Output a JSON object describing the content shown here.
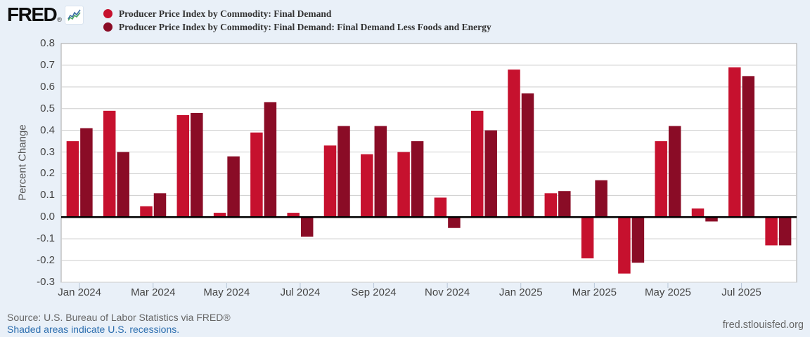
{
  "header": {
    "logo_text": "FRED",
    "logo_icon": "fred-sparkline-icon"
  },
  "chart_data": {
    "type": "bar",
    "title": "",
    "xlabel": "",
    "ylabel": "Percent Change",
    "ylim": [
      -0.3,
      0.8
    ],
    "grid": true,
    "legend_position": "top-left",
    "y_tick_labels": [
      "0.8",
      "0.7",
      "0.6",
      "0.5",
      "0.4",
      "0.3",
      "0.2",
      "0.1",
      "0.0",
      "-0.1",
      "-0.2",
      "-0.3"
    ],
    "x_tick_labels": [
      "Jan 2024",
      "Mar 2024",
      "May 2024",
      "Jul 2024",
      "Sep 2024",
      "Nov 2024",
      "Jan 2025",
      "Mar 2025",
      "May 2025",
      "Jul 2025"
    ],
    "x_tick_month_indices": [
      0,
      2,
      4,
      6,
      8,
      10,
      12,
      14,
      16,
      18
    ],
    "categories": [
      "Jan 2024",
      "Feb 2024",
      "Mar 2024",
      "Apr 2024",
      "May 2024",
      "Jun 2024",
      "Jul 2024",
      "Aug 2024",
      "Sep 2024",
      "Oct 2024",
      "Nov 2024",
      "Dec 2024",
      "Jan 2025",
      "Feb 2025",
      "Mar 2025",
      "Apr 2025",
      "May 2025",
      "Jun 2025",
      "Jul 2025",
      "Aug 2025"
    ],
    "series": [
      {
        "name": "Producer Price Index by Commodity: Final Demand",
        "color": "#c6112e",
        "values": [
          0.35,
          0.49,
          0.05,
          0.47,
          0.02,
          0.39,
          0.02,
          0.33,
          0.29,
          0.3,
          0.09,
          0.49,
          0.68,
          0.11,
          -0.19,
          -0.26,
          0.35,
          0.04,
          0.69,
          -0.13
        ]
      },
      {
        "name": "Producer Price Index by Commodity: Final Demand: Final Demand Less Foods and Energy",
        "color": "#8a0c26",
        "values": [
          0.41,
          0.3,
          0.11,
          0.48,
          0.28,
          0.53,
          -0.09,
          0.42,
          0.42,
          0.35,
          -0.05,
          0.4,
          0.57,
          0.12,
          0.17,
          -0.21,
          0.42,
          -0.02,
          0.65,
          -0.13
        ]
      }
    ]
  },
  "footer": {
    "source": "Source: U.S. Bureau of Labor Statistics via FRED®",
    "recession_note": "Shaded areas indicate U.S. recessions.",
    "site": "fred.stlouisfed.org"
  },
  "colors": {
    "page_background": "#e9f0f8",
    "plot_background": "#ffffff",
    "gridline": "#cdcdcd",
    "plot_border": "#a6a6a6",
    "zero_line": "#000000",
    "axis_text": "#454545",
    "tick_mark": "#b9c7d8",
    "link": "#2c6eaf"
  }
}
